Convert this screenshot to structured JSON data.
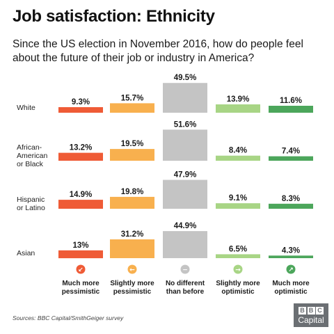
{
  "title": "Job satisfaction: Ethnicity",
  "subtitle": "Since the US election in November 2016, how do people feel about the future of their job or industry in America?",
  "source": "Sources: BBC Capital/SmithGeiger survey",
  "logo": {
    "letters": [
      "B",
      "B",
      "C"
    ],
    "word": "Capital"
  },
  "colors": {
    "much_more_pessimistic": "#ef5b36",
    "slightly_more_pessimistic": "#f8b04e",
    "no_different": "#c4c4c4",
    "slightly_more_optimistic": "#a8d585",
    "much_more_optimistic": "#4ca65b"
  },
  "chart_data": {
    "type": "bar",
    "categories": [
      "White",
      "African-American or Black",
      "Hispanic or Latino",
      "Asian"
    ],
    "category_lines": [
      [
        "White"
      ],
      [
        "African-",
        "American",
        "or Black"
      ],
      [
        "Hispanic",
        "or Latino"
      ],
      [
        "Asian"
      ]
    ],
    "series": [
      {
        "key": "much_more_pessimistic",
        "name": "Much more pessimistic",
        "name_lines": [
          "Much more",
          "pessimistic"
        ],
        "icon": "much-more-pessimistic-icon",
        "values": [
          9.3,
          13.2,
          14.9,
          13
        ],
        "labels": [
          "9.3%",
          "13.2%",
          "14.9%",
          "13%"
        ]
      },
      {
        "key": "slightly_more_pessimistic",
        "name": "Slightly more pessimistic",
        "name_lines": [
          "Slightly more",
          "pessimistic"
        ],
        "icon": "slightly-more-pessimistic-icon",
        "values": [
          15.7,
          19.5,
          19.8,
          31.2
        ],
        "labels": [
          "15.7%",
          "19.5%",
          "19.8%",
          "31.2%"
        ]
      },
      {
        "key": "no_different",
        "name": "No different than before",
        "name_lines": [
          "No different",
          "than before"
        ],
        "icon": "no-different-icon",
        "values": [
          49.5,
          51.6,
          47.9,
          44.9
        ],
        "labels": [
          "49.5%",
          "51.6%",
          "47.9%",
          "44.9%"
        ]
      },
      {
        "key": "slightly_more_optimistic",
        "name": "Slightly more optimistic",
        "name_lines": [
          "Slightly more",
          "optimistic"
        ],
        "icon": "slightly-more-optimistic-icon",
        "values": [
          13.9,
          8.4,
          9.1,
          6.5
        ],
        "labels": [
          "13.9%",
          "8.4%",
          "9.1%",
          "6.5%"
        ]
      },
      {
        "key": "much_more_optimistic",
        "name": "Much more optimistic",
        "name_lines": [
          "Much more",
          "optimistic"
        ],
        "icon": "much-more-optimistic-icon",
        "values": [
          11.6,
          7.4,
          8.3,
          4.3
        ],
        "labels": [
          "11.6%",
          "7.4%",
          "8.3%",
          "4.3%"
        ]
      }
    ],
    "ylim": [
      0,
      52
    ],
    "grid": false,
    "legend": "bottom"
  }
}
